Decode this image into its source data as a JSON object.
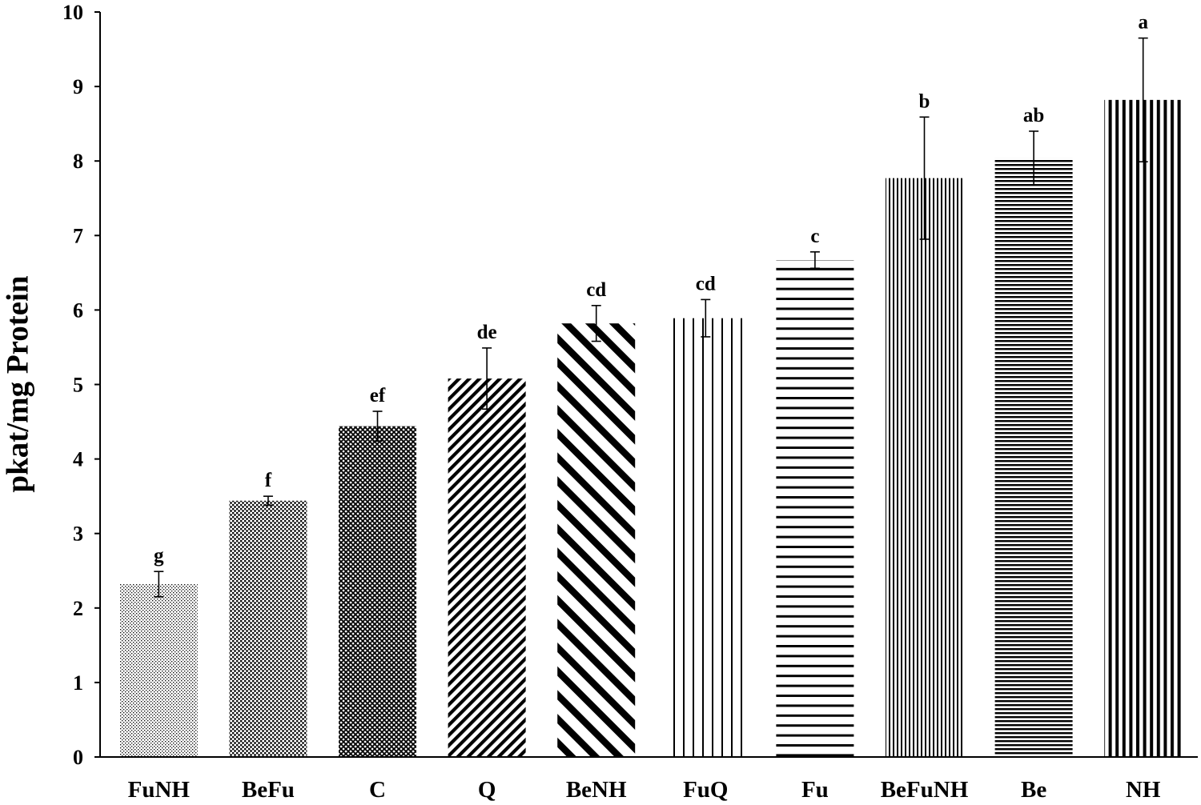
{
  "chart_data": {
    "type": "bar",
    "ylabel": "pkat/mg Protein",
    "categories": [
      "FuNH",
      "BeFu",
      "C",
      "Q",
      "BeNH",
      "FuQ",
      "Fu",
      "BeFuNH",
      "Be",
      "NH"
    ],
    "values": [
      2.32,
      3.44,
      4.44,
      5.08,
      5.82,
      5.89,
      6.67,
      7.77,
      8.04,
      8.82
    ],
    "errors": [
      0.17,
      0.06,
      0.2,
      0.41,
      0.24,
      0.25,
      0.11,
      0.82,
      0.36,
      0.83
    ],
    "significance_letters": [
      "g",
      "f",
      "ef",
      "de",
      "cd",
      "cd",
      "c",
      "b",
      "ab",
      "a"
    ],
    "ylim": [
      0,
      10
    ],
    "yticks": [
      0,
      1,
      2,
      3,
      4,
      5,
      6,
      7,
      8,
      9,
      10
    ],
    "grid": false
  }
}
